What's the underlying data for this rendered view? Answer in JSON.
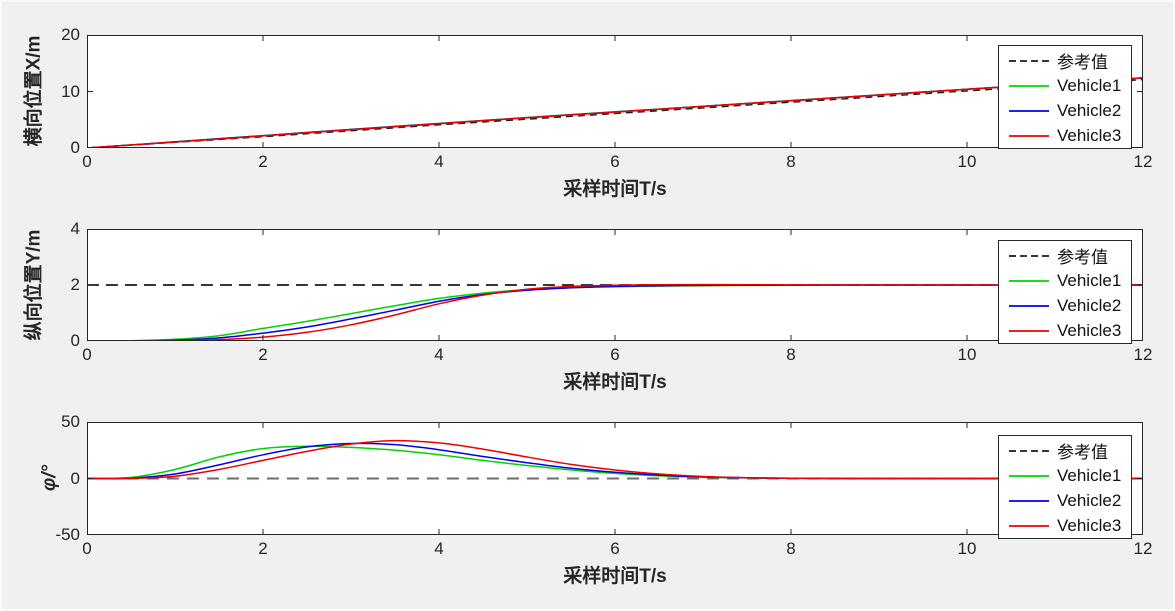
{
  "figure": {
    "background": "#f0f0f0",
    "axis_color": "#262626",
    "plot_background": "#ffffff",
    "legend": {
      "position": "top-right",
      "entries": [
        {
          "label": "参考值",
          "color": "#1a1a1a",
          "dashed": true
        },
        {
          "label": "Vehicle1",
          "color": "#00d400",
          "dashed": false
        },
        {
          "label": "Vehicle2",
          "color": "#0000ee",
          "dashed": false
        },
        {
          "label": "Vehicle3",
          "color": "#ee0000",
          "dashed": false
        }
      ]
    }
  },
  "chart_data": [
    {
      "type": "line",
      "title": "",
      "xlabel": "采样时间T/s",
      "ylabel": "横向位置X/m",
      "xlim": [
        0,
        12
      ],
      "ylim": [
        0,
        20
      ],
      "xticks": [
        0,
        2,
        4,
        6,
        8,
        10,
        12
      ],
      "yticks": [
        0,
        10,
        20
      ],
      "grid": false,
      "legend_position": "top-right",
      "series": [
        {
          "name": "参考值",
          "color": "#1a1a1a",
          "dash": "7 5",
          "width": 1.4,
          "x": [
            0,
            1,
            2,
            3,
            4,
            5,
            6,
            7,
            8,
            9,
            10,
            11,
            12
          ],
          "y": [
            0,
            1.0,
            2.0,
            3.05,
            4.1,
            5.1,
            6.1,
            7.1,
            8.1,
            9.1,
            10.1,
            11.1,
            12.1
          ]
        },
        {
          "name": "Vehicle1",
          "color": "#00d400",
          "dash": "",
          "width": 1.5,
          "x": [
            0,
            1,
            2,
            3,
            4,
            5,
            6,
            7,
            8,
            9,
            10,
            11,
            12
          ],
          "y": [
            0,
            1.1,
            2.2,
            3.3,
            4.35,
            5.4,
            6.4,
            7.4,
            8.4,
            9.4,
            10.4,
            11.4,
            12.4
          ]
        },
        {
          "name": "Vehicle2",
          "color": "#0000ee",
          "dash": "",
          "width": 1.5,
          "x": [
            0,
            1,
            2,
            3,
            4,
            5,
            6,
            7,
            8,
            9,
            10,
            11,
            12
          ],
          "y": [
            0,
            1.08,
            2.18,
            3.27,
            4.32,
            5.37,
            6.37,
            7.37,
            8.38,
            9.38,
            10.39,
            11.39,
            12.39
          ]
        },
        {
          "name": "Vehicle3",
          "color": "#ee0000",
          "dash": "",
          "width": 1.5,
          "x": [
            0,
            1,
            2,
            3,
            4,
            5,
            6,
            7,
            8,
            9,
            10,
            11,
            12
          ],
          "y": [
            0,
            1.06,
            2.15,
            3.24,
            4.3,
            5.35,
            6.36,
            7.36,
            8.37,
            9.38,
            10.4,
            11.41,
            12.42
          ]
        }
      ]
    },
    {
      "type": "line",
      "title": "",
      "xlabel": "采样时间T/s",
      "ylabel": "纵向位置Y/m",
      "xlim": [
        0,
        12
      ],
      "ylim": [
        0,
        4
      ],
      "xticks": [
        0,
        2,
        4,
        6,
        8,
        10,
        12
      ],
      "yticks": [
        0,
        2,
        4
      ],
      "grid": false,
      "legend_position": "top-right",
      "series": [
        {
          "name": "参考值",
          "color": "#1a1a1a",
          "dash": "12 7",
          "width": 1.7,
          "x": [
            0,
            12
          ],
          "y": [
            2,
            2
          ]
        },
        {
          "name": "Vehicle1",
          "color": "#00d400",
          "dash": "",
          "width": 1.5,
          "x": [
            0,
            0.5,
            1,
            1.5,
            2,
            2.5,
            3,
            3.5,
            4,
            4.5,
            5,
            5.5,
            6,
            6.5,
            7,
            7.5,
            8,
            9,
            10,
            11,
            12
          ],
          "y": [
            0,
            0.01,
            0.06,
            0.19,
            0.45,
            0.7,
            0.98,
            1.26,
            1.52,
            1.71,
            1.83,
            1.9,
            1.94,
            1.96,
            1.975,
            1.985,
            1.99,
            2,
            2,
            2,
            2
          ]
        },
        {
          "name": "Vehicle2",
          "color": "#0000ee",
          "dash": "",
          "width": 1.5,
          "x": [
            0,
            0.5,
            1,
            1.5,
            2,
            2.5,
            3,
            3.5,
            4,
            4.5,
            5,
            5.5,
            6,
            6.5,
            7,
            7.5,
            8,
            9,
            10,
            11,
            12
          ],
          "y": [
            0,
            0.005,
            0.03,
            0.11,
            0.28,
            0.5,
            0.79,
            1.1,
            1.42,
            1.66,
            1.81,
            1.9,
            1.95,
            1.975,
            1.985,
            1.99,
            1.995,
            2,
            2,
            2,
            2
          ]
        },
        {
          "name": "Vehicle3",
          "color": "#ee0000",
          "dash": "",
          "width": 1.5,
          "x": [
            0,
            0.5,
            1,
            1.5,
            2,
            2.5,
            3,
            3.5,
            4,
            4.5,
            5,
            5.5,
            6,
            6.5,
            7,
            7.5,
            8,
            9,
            10,
            11,
            12
          ],
          "y": [
            0,
            0,
            0.01,
            0.05,
            0.14,
            0.31,
            0.58,
            0.93,
            1.33,
            1.64,
            1.85,
            1.95,
            1.99,
            2.01,
            2.015,
            2.01,
            2.005,
            2,
            2,
            2,
            2
          ]
        }
      ]
    },
    {
      "type": "line",
      "title": "",
      "xlabel": "采样时间T/s",
      "ylabel": "φ/°",
      "xlim": [
        0,
        12
      ],
      "ylim": [
        -50,
        50
      ],
      "xticks": [
        0,
        2,
        4,
        6,
        8,
        10,
        12
      ],
      "yticks": [
        -50,
        0,
        50
      ],
      "grid": false,
      "legend_position": "right",
      "series": [
        {
          "name": "参考值",
          "color": "#6e6e6e",
          "dash": "12 8",
          "width": 2,
          "x": [
            0,
            12
          ],
          "y": [
            0,
            0
          ]
        },
        {
          "name": "Vehicle1",
          "color": "#00d400",
          "dash": "",
          "width": 1.5,
          "x": [
            0,
            0.5,
            1,
            1.5,
            2,
            2.5,
            3,
            3.5,
            4,
            4.5,
            5,
            5.5,
            6,
            6.5,
            7,
            7.5,
            8,
            9,
            10,
            11,
            12
          ],
          "y": [
            0,
            1,
            8,
            19,
            26.5,
            28.5,
            27.5,
            25,
            21,
            16,
            11.5,
            7.5,
            4.5,
            2.5,
            1.2,
            0.5,
            0.2,
            0,
            0,
            0,
            0
          ]
        },
        {
          "name": "Vehicle2",
          "color": "#0000ee",
          "dash": "",
          "width": 1.5,
          "x": [
            0,
            0.5,
            1,
            1.5,
            2,
            2.5,
            3,
            3.5,
            4,
            4.5,
            5,
            5.5,
            6,
            6.5,
            7,
            7.5,
            8,
            9,
            10,
            11,
            12
          ],
          "y": [
            0,
            0.3,
            4,
            12,
            21,
            28,
            31,
            30,
            25.5,
            19.5,
            14,
            9,
            5.5,
            3,
            1.4,
            0.6,
            0.2,
            0,
            0,
            0,
            0
          ]
        },
        {
          "name": "Vehicle3",
          "color": "#ee0000",
          "dash": "",
          "width": 1.5,
          "x": [
            0,
            0.5,
            1,
            1.5,
            2,
            2.5,
            3,
            3.5,
            4,
            4.5,
            5,
            5.5,
            6,
            6.5,
            7,
            7.5,
            8,
            9,
            10,
            11,
            12
          ],
          "y": [
            0,
            0.1,
            2,
            8,
            16,
            24,
            30.5,
            33.5,
            31.5,
            26,
            19,
            12.5,
            7.5,
            4,
            1.8,
            0.7,
            0.2,
            0,
            0,
            0,
            0
          ]
        }
      ]
    }
  ]
}
